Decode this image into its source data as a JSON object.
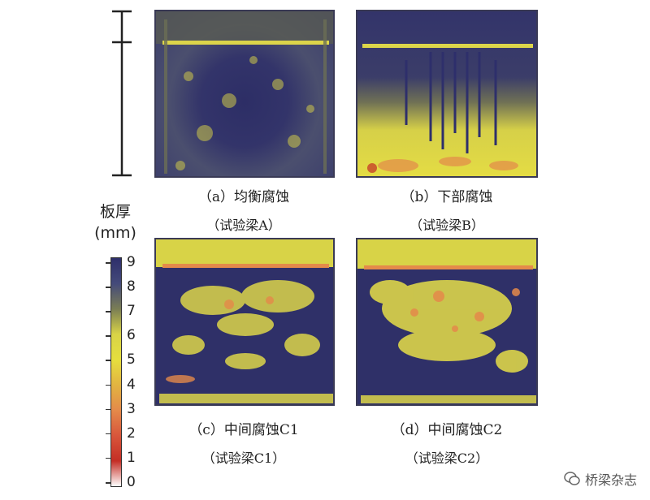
{
  "legend": {
    "title_line1": "板厚",
    "title_line2": "(mm)",
    "ticks": [
      "9",
      "8",
      "7",
      "6",
      "5",
      "4",
      "3",
      "2",
      "1",
      "0"
    ],
    "colors": {
      "9": "#2e2f6b",
      "8": "#444a7a",
      "7": "#7a7d55",
      "6": "#d8d347",
      "5": "#e6df3e",
      "4": "#e2b441",
      "3": "#e48a4a",
      "2": "#d8563b",
      "1": "#c42e25",
      "0": "#ffffff"
    }
  },
  "panels": [
    {
      "id": "a",
      "caption": "（a）均衡腐蚀",
      "subcaption": "（试验梁A）"
    },
    {
      "id": "b",
      "caption": "（b）下部腐蚀",
      "subcaption": "（试验梁B）"
    },
    {
      "id": "c",
      "caption": "（c）中间腐蚀C1",
      "subcaption": "（试验梁C1）"
    },
    {
      "id": "d",
      "caption": "（d）中间腐蚀C2",
      "subcaption": "（试验梁C2）"
    }
  ],
  "watermark": {
    "text": "桥梁杂志",
    "icon": "wechat-icon"
  }
}
